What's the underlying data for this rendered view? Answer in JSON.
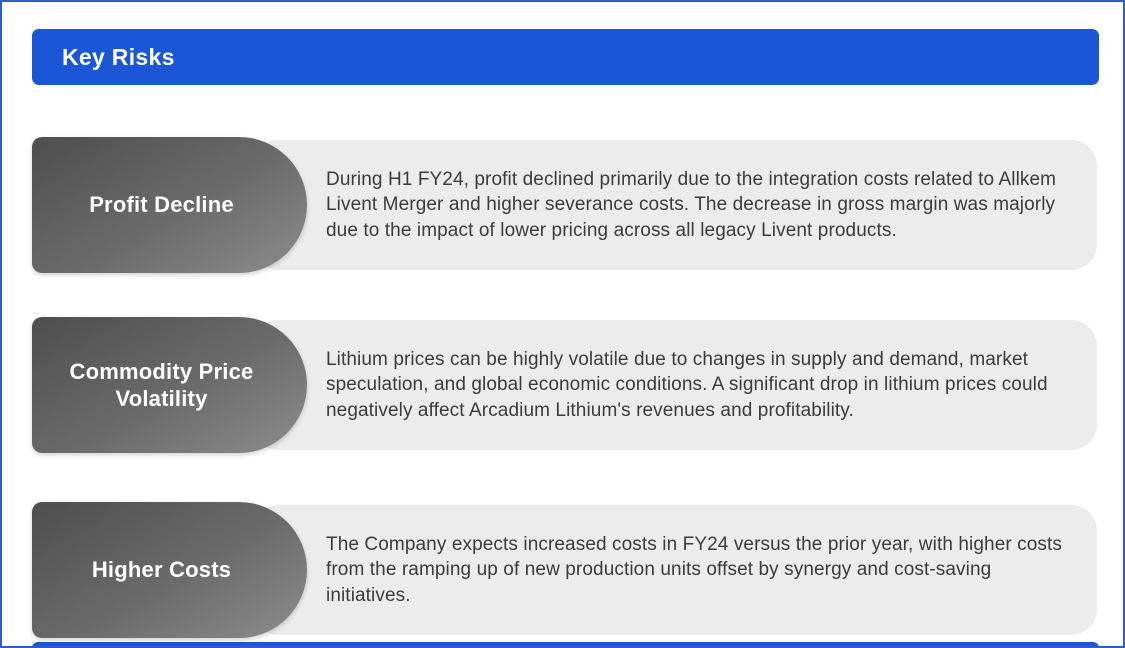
{
  "header": {
    "title": "Key Risks",
    "bg_color": "#1a56d6"
  },
  "colors": {
    "page_border": "#2e5ec9",
    "pill_gradient_start": "#4e4e4e",
    "pill_gradient_end": "#8d8d8d",
    "description_bg": "#ececec",
    "body_text": "#3b3b3b"
  },
  "risks": [
    {
      "label": "Profit Decline",
      "description": "During H1 FY24, profit declined primarily due to the integration costs related to Allkem Livent Merger and higher severance costs. The decrease in gross margin was majorly due to the impact of lower pricing across all legacy Livent products."
    },
    {
      "label": "Commodity Price Volatility",
      "description": "Lithium prices can be highly volatile due to changes in supply and demand, market speculation, and global economic conditions. A significant drop in lithium prices could negatively affect Arcadium Lithium's revenues and profitability."
    },
    {
      "label": "Higher Costs",
      "description": "The Company expects increased costs in FY24 versus the prior year, with higher costs from the ramping up of new production units offset by synergy and cost-saving initiatives."
    }
  ]
}
